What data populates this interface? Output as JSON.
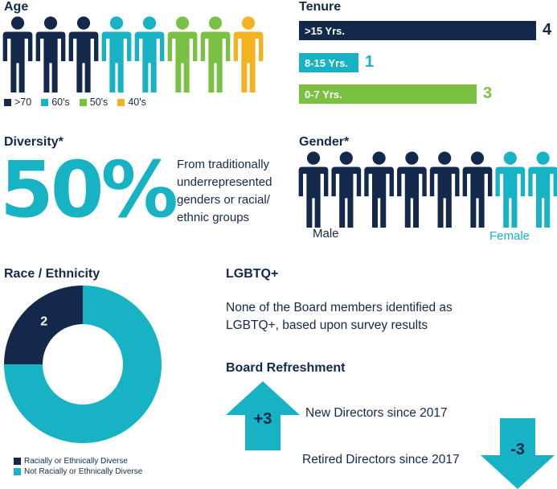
{
  "colors": {
    "navy": "#13294b",
    "teal": "#17b2c4",
    "green": "#7ac143",
    "yellow": "#f4b223",
    "white": "#ffffff"
  },
  "age": {
    "title": "Age",
    "legend": [
      {
        "label": ">70",
        "color": "#13294b"
      },
      {
        "label": "60's",
        "color": "#17b2c4"
      },
      {
        "label": "50's",
        "color": "#7ac143"
      },
      {
        "label": "40's",
        "color": "#f4b223"
      }
    ],
    "counts": [
      3,
      2,
      2,
      1
    ]
  },
  "tenure": {
    "title": "Tenure",
    "bars": [
      {
        "label": ">15 Yrs.",
        "value": 4,
        "value_text": "4",
        "color": "#13294b"
      },
      {
        "label": "8-15 Yrs.",
        "value": 1,
        "value_text": "1",
        "color": "#17b2c4"
      },
      {
        "label": "0-7 Yrs.",
        "value": 3,
        "value_text": "3",
        "color": "#7ac143"
      }
    ]
  },
  "diversity": {
    "title": "Diversity*",
    "big_value": "50%",
    "description_lines": [
      "From traditionally",
      "underrepresented",
      "genders or racial/",
      "ethnic groups"
    ]
  },
  "gender": {
    "title": "Gender*",
    "male_label": "Male",
    "female_label": "Female",
    "male_count": 6,
    "female_count": 2
  },
  "race": {
    "title": "Race / Ethnicity",
    "legend": [
      {
        "label": "Racially or Ethnically Diverse",
        "color": "#13294b"
      },
      {
        "label": "Not Racially or Ethnically Diverse",
        "color": "#17b2c4"
      }
    ]
  },
  "lgbtq": {
    "title": "LGBTQ+",
    "text_lines": [
      "None of the Board members identified as",
      "LGBTQ+, based upon survey results"
    ]
  },
  "refreshment": {
    "title": "Board Refreshment",
    "up_value": "+3",
    "up_label": "New Directors since 2017",
    "down_value": "-3",
    "down_label": "Retired Directors since 2017"
  },
  "chart_data": [
    {
      "type": "pictogram",
      "title": "Age",
      "categories": [
        ">70",
        "60's",
        "50's",
        "40's"
      ],
      "values": [
        3,
        2,
        2,
        1
      ]
    },
    {
      "type": "bar",
      "title": "Tenure",
      "categories": [
        ">15 Yrs.",
        "8-15 Yrs.",
        "0-7 Yrs."
      ],
      "values": [
        4,
        1,
        3
      ]
    },
    {
      "type": "pictogram",
      "title": "Gender*",
      "categories": [
        "Male",
        "Female"
      ],
      "values": [
        6,
        2
      ]
    },
    {
      "type": "pie",
      "title": "Race / Ethnicity",
      "categories": [
        "Racially or Ethnically Diverse",
        "Not Racially or Ethnically Diverse"
      ],
      "values": [
        2,
        6
      ]
    }
  ]
}
